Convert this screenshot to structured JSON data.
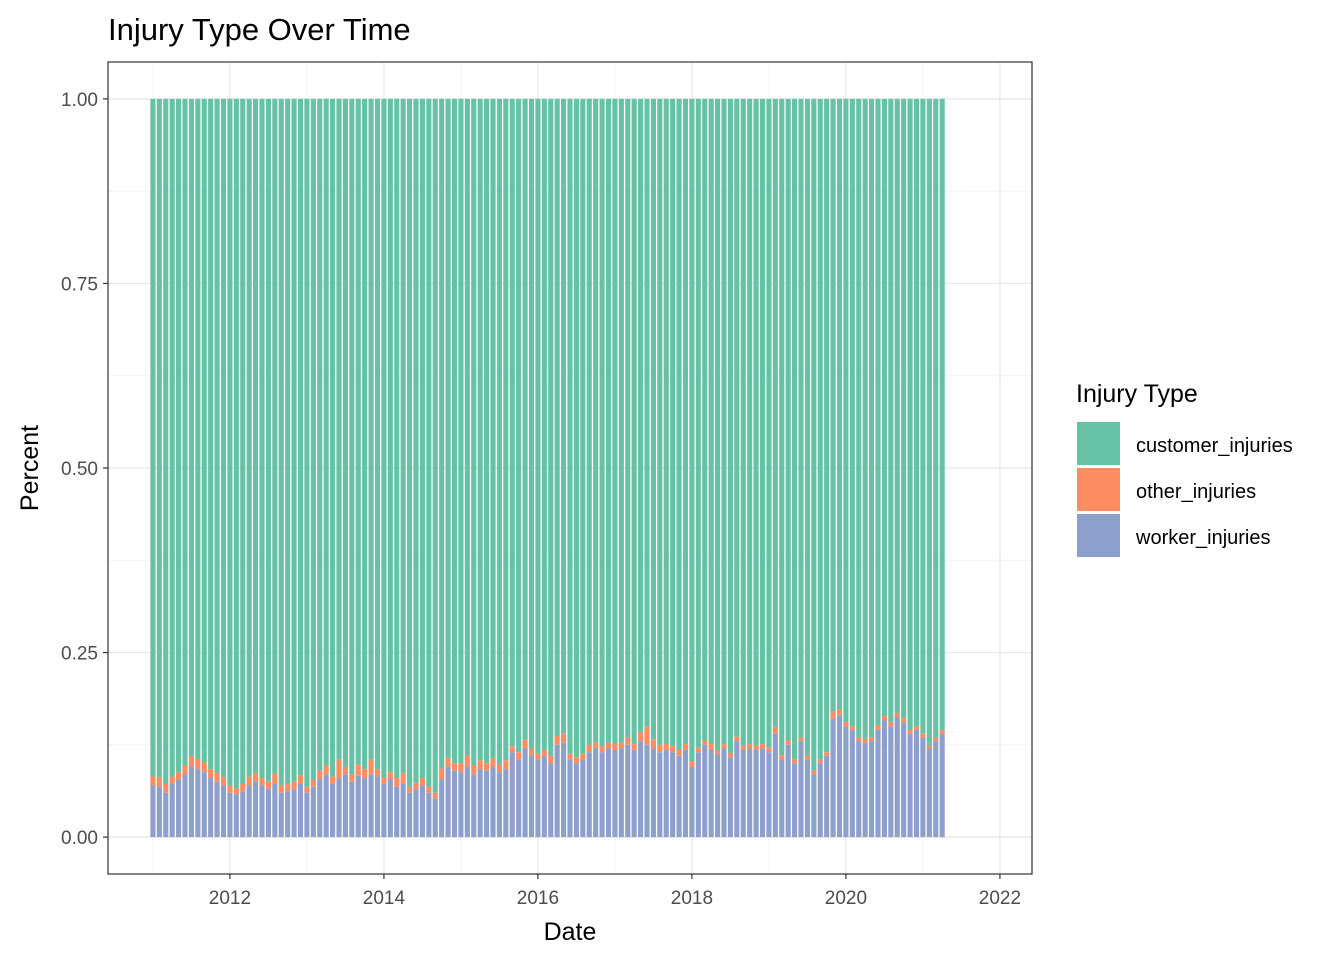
{
  "chart_data": {
    "type": "bar",
    "stacked": true,
    "title": "Injury Type Over Time",
    "xlabel": "Date",
    "ylabel": "Percent",
    "x_range": [
      "2011-01",
      "2021-12"
    ],
    "x_axis_limits": [
      "2010-06",
      "2022-06"
    ],
    "x_ticks": [
      "2012",
      "2014",
      "2016",
      "2018",
      "2020",
      "2022"
    ],
    "ylim": [
      -0.05,
      1.05
    ],
    "y_ticks": [
      "0.00",
      "0.25",
      "0.50",
      "0.75",
      "1.00"
    ],
    "y_tick_values": [
      0,
      0.25,
      0.5,
      0.75,
      1.0
    ],
    "grid": true,
    "legend": {
      "title": "Injury Type",
      "position": "right"
    },
    "series": [
      {
        "name": "customer_injuries",
        "color": "#66c2a5"
      },
      {
        "name": "other_injuries",
        "color": "#fc8d62"
      },
      {
        "name": "worker_injuries",
        "color": "#8da0cb"
      }
    ],
    "worker_share": [
      0.07,
      0.068,
      0.06,
      0.072,
      0.078,
      0.085,
      0.095,
      0.092,
      0.088,
      0.08,
      0.075,
      0.07,
      0.06,
      0.058,
      0.062,
      0.07,
      0.075,
      0.07,
      0.065,
      0.072,
      0.06,
      0.062,
      0.065,
      0.072,
      0.06,
      0.068,
      0.078,
      0.085,
      0.072,
      0.08,
      0.085,
      0.075,
      0.083,
      0.08,
      0.085,
      0.082,
      0.072,
      0.078,
      0.068,
      0.072,
      0.06,
      0.065,
      0.07,
      0.06,
      0.052,
      0.078,
      0.095,
      0.09,
      0.088,
      0.095,
      0.085,
      0.092,
      0.09,
      0.095,
      0.088,
      0.092,
      0.115,
      0.105,
      0.12,
      0.11,
      0.105,
      0.11,
      0.1,
      0.125,
      0.128,
      0.105,
      0.1,
      0.105,
      0.115,
      0.12,
      0.115,
      0.12,
      0.118,
      0.12,
      0.125,
      0.118,
      0.13,
      0.125,
      0.12,
      0.115,
      0.118,
      0.115,
      0.11,
      0.118,
      0.095,
      0.115,
      0.125,
      0.118,
      0.112,
      0.12,
      0.108,
      0.13,
      0.118,
      0.12,
      0.118,
      0.12,
      0.115,
      0.14,
      0.105,
      0.125,
      0.1,
      0.13,
      0.105,
      0.085,
      0.1,
      0.11,
      0.16,
      0.165,
      0.15,
      0.145,
      0.13,
      0.128,
      0.13,
      0.145,
      0.158,
      0.15,
      0.162,
      0.155,
      0.14,
      0.145,
      0.135,
      0.12,
      0.13,
      0.14
    ],
    "other_share": [
      0.012,
      0.013,
      0.012,
      0.01,
      0.01,
      0.012,
      0.015,
      0.014,
      0.013,
      0.012,
      0.012,
      0.011,
      0.01,
      0.008,
      0.01,
      0.012,
      0.012,
      0.01,
      0.01,
      0.014,
      0.01,
      0.01,
      0.01,
      0.012,
      0.008,
      0.01,
      0.012,
      0.012,
      0.01,
      0.025,
      0.01,
      0.01,
      0.015,
      0.012,
      0.02,
      0.01,
      0.008,
      0.01,
      0.012,
      0.015,
      0.008,
      0.008,
      0.01,
      0.008,
      0.008,
      0.015,
      0.012,
      0.01,
      0.012,
      0.015,
      0.012,
      0.012,
      0.01,
      0.012,
      0.01,
      0.012,
      0.008,
      0.01,
      0.012,
      0.01,
      0.008,
      0.008,
      0.01,
      0.012,
      0.012,
      0.008,
      0.008,
      0.008,
      0.01,
      0.008,
      0.008,
      0.008,
      0.008,
      0.008,
      0.01,
      0.008,
      0.012,
      0.025,
      0.012,
      0.01,
      0.008,
      0.008,
      0.008,
      0.008,
      0.008,
      0.006,
      0.006,
      0.008,
      0.006,
      0.006,
      0.006,
      0.006,
      0.006,
      0.006,
      0.006,
      0.006,
      0.006,
      0.008,
      0.006,
      0.006,
      0.005,
      0.005,
      0.005,
      0.005,
      0.005,
      0.005,
      0.01,
      0.008,
      0.006,
      0.005,
      0.005,
      0.005,
      0.005,
      0.006,
      0.006,
      0.006,
      0.006,
      0.006,
      0.005,
      0.005,
      0.005,
      0.004,
      0.005,
      0.005
    ]
  }
}
